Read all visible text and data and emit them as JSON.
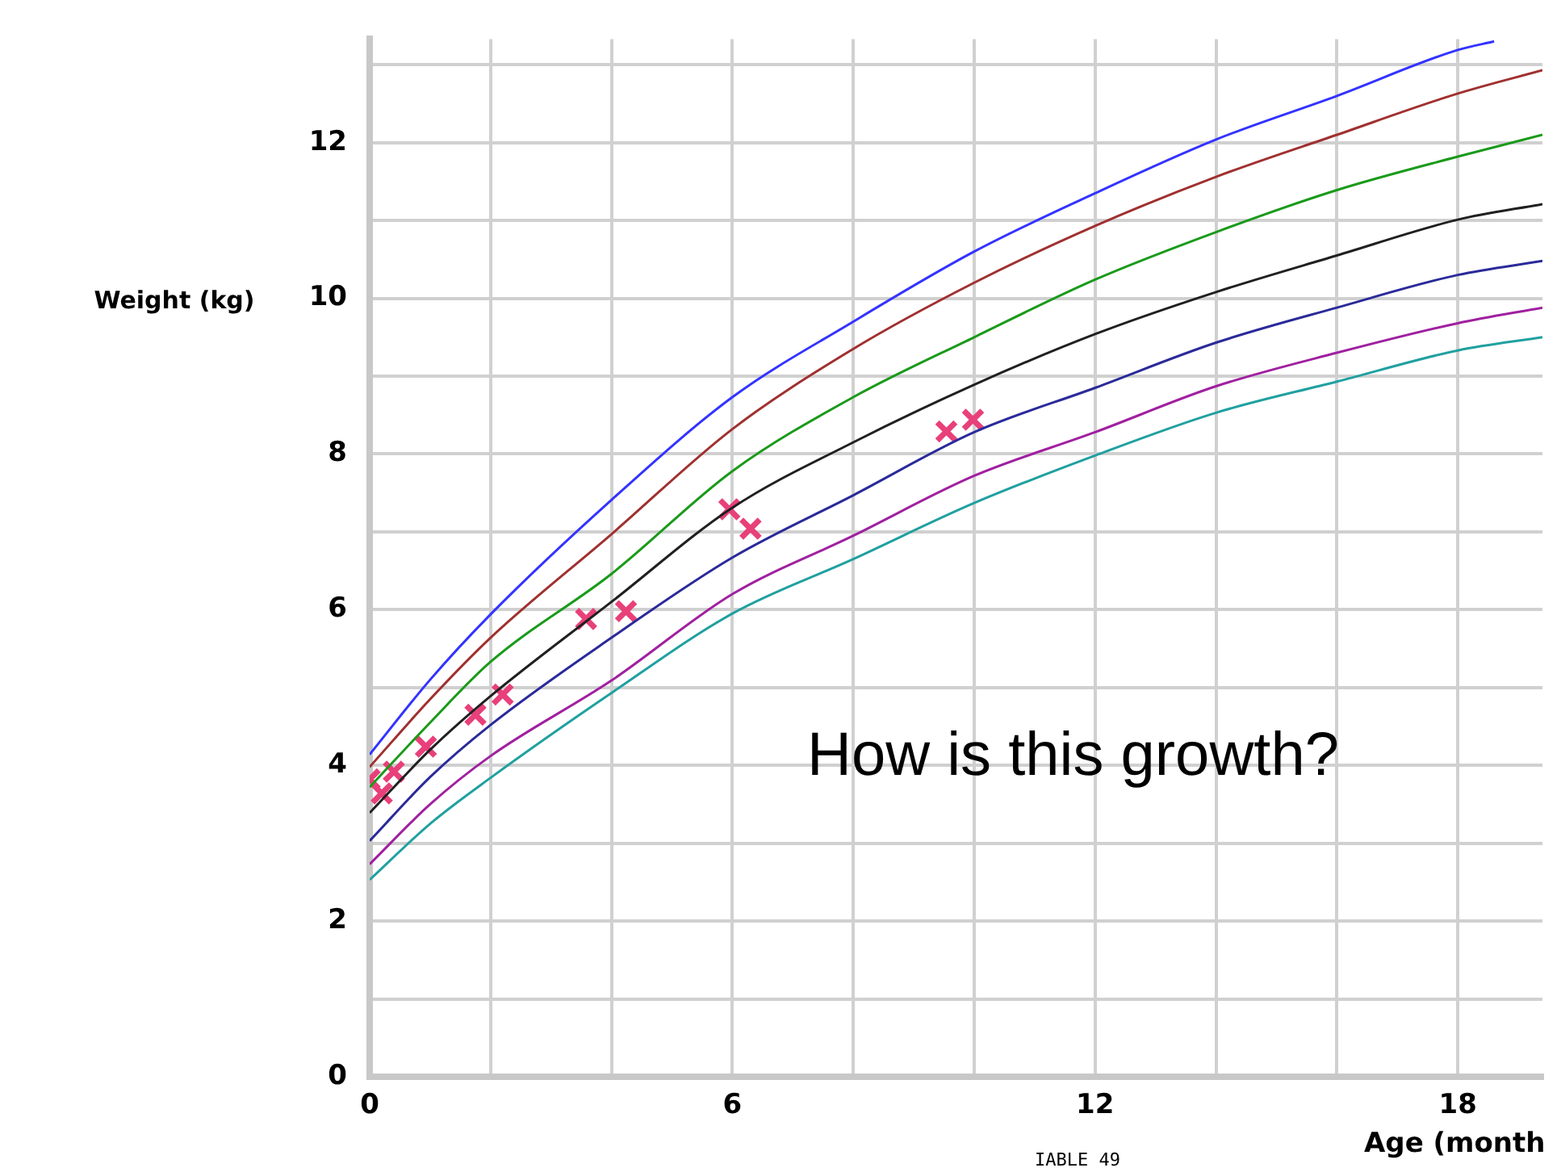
{
  "chart_data": {
    "type": "line",
    "xlabel": "Age (month",
    "ylabel": "Weight (kg)",
    "annotations": [
      "How is this growth?",
      "IABLE 49"
    ],
    "xlim": [
      0,
      19.4
    ],
    "xticks": [
      0,
      {
        "value": 2,
        "label": null
      },
      {
        "value": 4,
        "label": null
      },
      6,
      {
        "value": 8,
        "label": null
      },
      {
        "value": 10,
        "label": null
      },
      12,
      {
        "value": 14,
        "label": null
      },
      {
        "value": 16,
        "label": null
      },
      18
    ],
    "ylim": [
      0,
      13.33
    ],
    "yticks": [
      0,
      {
        "value": 1,
        "label": null
      },
      2,
      {
        "value": 3,
        "label": null
      },
      4,
      {
        "value": 5,
        "label": null
      },
      6,
      {
        "value": 7,
        "label": null
      },
      8,
      {
        "value": 9,
        "label": null
      },
      10,
      {
        "value": 11,
        "label": null
      },
      12,
      {
        "value": 13,
        "label": null
      }
    ],
    "grid": true,
    "legend": false,
    "series": [
      {
        "color": "#3333ff",
        "x": [
          0,
          1,
          2,
          4,
          6,
          8,
          10,
          12,
          14,
          16,
          18,
          18.6
        ],
        "values": [
          4.14,
          5.1,
          5.94,
          7.41,
          8.73,
          9.7,
          10.6,
          11.35,
          12.04,
          12.6,
          13.19,
          13.3
        ]
      },
      {
        "color": "#a03030",
        "x": [
          0,
          1,
          2,
          4,
          6,
          8,
          10,
          12,
          14,
          16,
          18,
          19.4
        ],
        "values": [
          3.98,
          4.85,
          5.64,
          6.97,
          8.32,
          9.35,
          10.2,
          10.93,
          11.56,
          12.1,
          12.63,
          12.93
        ]
      },
      {
        "color": "#1a9a1a",
        "x": [
          0,
          1,
          2,
          4,
          6,
          8,
          10,
          12,
          14,
          16,
          18,
          19.4
        ],
        "values": [
          3.72,
          4.55,
          5.33,
          6.46,
          7.78,
          8.73,
          9.5,
          10.24,
          10.85,
          11.39,
          11.82,
          12.1
        ]
      },
      {
        "color": "#202020",
        "x": [
          0,
          1,
          2,
          4,
          6,
          8,
          10,
          12,
          14,
          16,
          18,
          19.4
        ],
        "values": [
          3.39,
          4.2,
          4.89,
          6.1,
          7.31,
          8.15,
          8.89,
          9.54,
          10.08,
          10.55,
          11.01,
          11.21
        ]
      },
      {
        "color": "#2a2a9a",
        "x": [
          0,
          1,
          2,
          4,
          6,
          8,
          10,
          12,
          14,
          16,
          18,
          19.4
        ],
        "values": [
          3.03,
          3.85,
          4.52,
          5.64,
          6.67,
          7.47,
          8.28,
          8.85,
          9.43,
          9.88,
          10.3,
          10.48
        ]
      },
      {
        "color": "#a020a0",
        "x": [
          0,
          1,
          2,
          4,
          6,
          8,
          10,
          12,
          14,
          16,
          18,
          19.4
        ],
        "values": [
          2.73,
          3.5,
          4.12,
          5.09,
          6.2,
          6.95,
          7.72,
          8.28,
          8.87,
          9.3,
          9.68,
          9.88
        ]
      },
      {
        "color": "#20a0a0",
        "x": [
          0,
          1,
          2,
          4,
          6,
          8,
          10,
          12,
          14,
          16,
          18,
          19.4
        ],
        "values": [
          2.53,
          3.25,
          3.84,
          4.93,
          5.95,
          6.65,
          7.37,
          7.98,
          8.53,
          8.93,
          9.33,
          9.5
        ]
      },
      {
        "type": "scatter",
        "marker": "cross",
        "color": "#e8407a",
        "x": [
          0,
          0.2,
          0.4,
          0.93,
          1.75,
          2.2,
          3.58,
          4.24,
          5.95,
          6.3,
          9.54,
          9.98
        ],
        "values": [
          3.82,
          3.64,
          3.92,
          4.24,
          4.65,
          4.91,
          5.88,
          5.98,
          7.29,
          7.04,
          8.29,
          8.44
        ]
      }
    ]
  }
}
